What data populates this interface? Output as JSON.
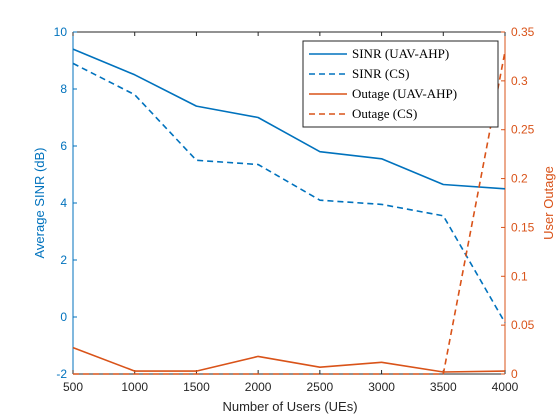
{
  "chart_data": {
    "type": "line",
    "x": [
      500,
      1000,
      1500,
      2000,
      2500,
      3000,
      3500,
      4000
    ],
    "xlabel": "Number of Users (UEs)",
    "xlim": [
      500,
      4000
    ],
    "xticks": [
      500,
      1000,
      1500,
      2000,
      2500,
      3000,
      3500,
      4000
    ],
    "grid": false,
    "legend_position": "top-right",
    "left_axis": {
      "label": "Average SINR (dB)",
      "color": "#0072BD",
      "ylim": [
        -2,
        10
      ],
      "ticks": [
        -2,
        0,
        2,
        4,
        6,
        8,
        10
      ]
    },
    "right_axis": {
      "label": "User Outage",
      "color": "#D95319",
      "ylim": [
        0,
        0.35
      ],
      "ticks": [
        0,
        0.05,
        0.1,
        0.15,
        0.2,
        0.25,
        0.3,
        0.35
      ]
    },
    "series": [
      {
        "name": "SINR (UAV-AHP)",
        "axis": "left",
        "style": "solid",
        "color": "#0072BD",
        "values": [
          9.4,
          8.5,
          7.4,
          7.0,
          5.8,
          5.55,
          4.65,
          4.5
        ]
      },
      {
        "name": "SINR (CS)",
        "axis": "left",
        "style": "dashed",
        "color": "#0072BD",
        "values": [
          8.9,
          7.8,
          5.5,
          5.35,
          4.1,
          3.95,
          3.55,
          -0.2
        ]
      },
      {
        "name": "Outage (UAV-AHP)",
        "axis": "right",
        "style": "solid",
        "color": "#D95319",
        "values": [
          0.027,
          0.003,
          0.003,
          0.018,
          0.007,
          0.012,
          0.002,
          0.003
        ]
      },
      {
        "name": "Outage (CS)",
        "axis": "right",
        "style": "dashed",
        "color": "#D95319",
        "values": [
          0,
          0,
          0,
          0,
          0,
          0,
          0,
          0.33
        ]
      }
    ]
  }
}
